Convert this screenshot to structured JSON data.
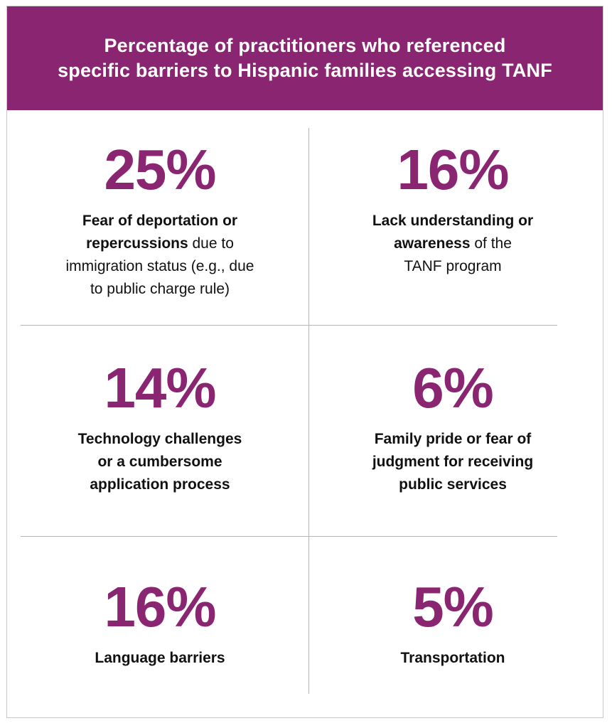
{
  "colors": {
    "accent": "#8a2572",
    "header_bg": "#8a2572",
    "text": "#111111",
    "divider": "#b5b5b5"
  },
  "header": {
    "line1": "Percentage of practitioners who referenced",
    "line2": "specific barriers to Hispanic families accessing TANF"
  },
  "chart_data": {
    "type": "table",
    "title": "Percentage of practitioners who referenced specific barriers to Hispanic families accessing TANF",
    "items": [
      {
        "value": "25%",
        "bold_lines": [
          "Fear of deportation or"
        ],
        "bold_tail": "repercussions",
        "tail": " due to",
        "plain_lines": [
          "immigration status (e.g., due",
          "to public charge rule)"
        ]
      },
      {
        "value": "16%",
        "bold_lines": [
          "Lack understanding or"
        ],
        "bold_tail": "awareness",
        "tail": " of the",
        "plain_lines": [
          "TANF program"
        ]
      },
      {
        "value": "14%",
        "bold_lines": [
          "Technology challenges",
          "or a cumbersome",
          "application process"
        ],
        "bold_tail": "",
        "tail": "",
        "plain_lines": []
      },
      {
        "value": "6%",
        "bold_lines": [
          "Family pride or fear of",
          "judgment for receiving",
          "public services"
        ],
        "bold_tail": "",
        "tail": "",
        "plain_lines": []
      },
      {
        "value": "16%",
        "bold_lines": [
          "Language barriers"
        ],
        "bold_tail": "",
        "tail": "",
        "plain_lines": []
      },
      {
        "value": "5%",
        "bold_lines": [
          "Transportation"
        ],
        "bold_tail": "",
        "tail": "",
        "plain_lines": []
      }
    ]
  }
}
